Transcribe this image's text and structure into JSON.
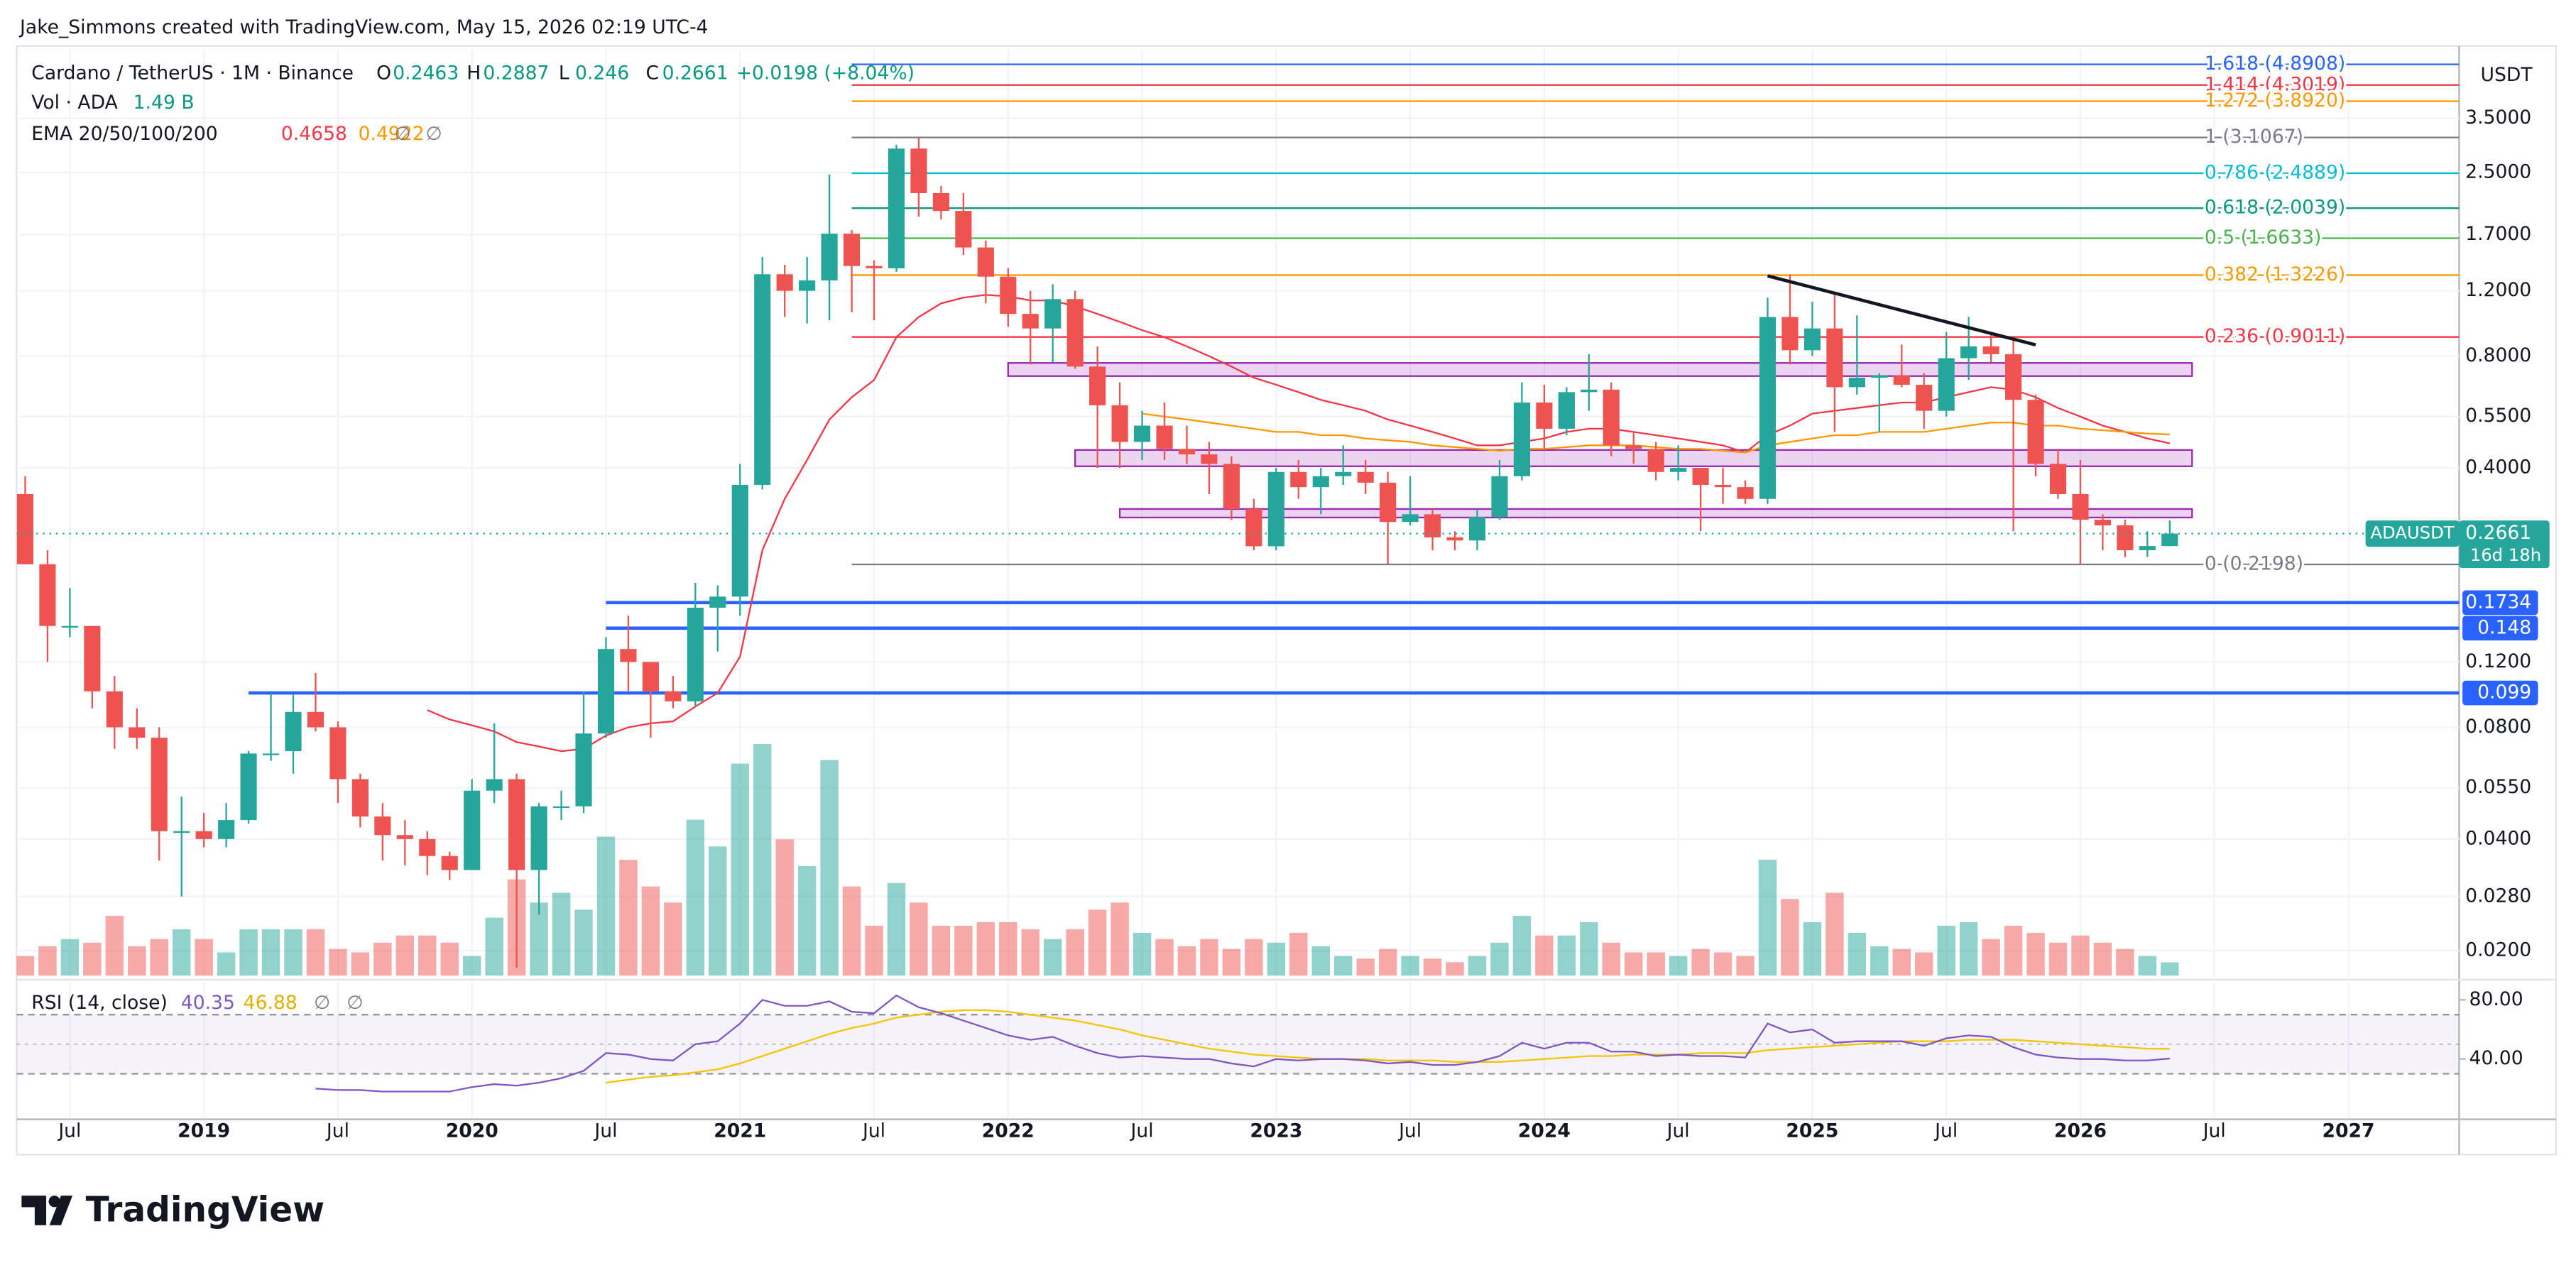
{
  "header": {
    "credit": "Jake_Simmons created with TradingView.com, May 15, 2026 02:19 UTC-4"
  },
  "footer": {
    "brand": "TradingView"
  },
  "chart_data": {
    "type": "candlestick",
    "title": "Cardano / TetherUS · 1M · Binance",
    "legend": {
      "o": "O",
      "h": "H",
      "l": "L",
      "c": "C",
      "change": "+0.0198 (+8.04%)",
      "volume_title": "Vol · ADA",
      "volume_value": "1.49 B",
      "ema_title": "EMA 20/50/100/200",
      "ema_empty": [
        "∅",
        "∅"
      ]
    },
    "currency": "USDT",
    "log_scale": true,
    "grid": true,
    "up_color": "#26a69a",
    "down_color": "#ef5350",
    "x": [
      "2018-05",
      "2018-06",
      "2018-07",
      "2018-08",
      "2018-09",
      "2018-10",
      "2018-11",
      "2018-12",
      "2019-01",
      "2019-02",
      "2019-03",
      "2019-04",
      "2019-05",
      "2019-06",
      "2019-07",
      "2019-08",
      "2019-09",
      "2019-10",
      "2019-11",
      "2019-12",
      "2020-01",
      "2020-02",
      "2020-03",
      "2020-04",
      "2020-05",
      "2020-06",
      "2020-07",
      "2020-08",
      "2020-09",
      "2020-10",
      "2020-11",
      "2020-12",
      "2021-01",
      "2021-02",
      "2021-03",
      "2021-04",
      "2021-05",
      "2021-06",
      "2021-07",
      "2021-08",
      "2021-09",
      "2021-10",
      "2021-11",
      "2021-12",
      "2022-01",
      "2022-02",
      "2022-03",
      "2022-04",
      "2022-05",
      "2022-06",
      "2022-07",
      "2022-08",
      "2022-09",
      "2022-10",
      "2022-11",
      "2022-12",
      "2023-01",
      "2023-02",
      "2023-03",
      "2023-04",
      "2023-05",
      "2023-06",
      "2023-07",
      "2023-08",
      "2023-09",
      "2023-10",
      "2023-11",
      "2023-12",
      "2024-01",
      "2024-02",
      "2024-03",
      "2024-04",
      "2024-05",
      "2024-06",
      "2024-07",
      "2024-08",
      "2024-09",
      "2024-10",
      "2024-11",
      "2024-12",
      "2025-01",
      "2025-02",
      "2025-03",
      "2025-04",
      "2025-05",
      "2025-06",
      "2025-07",
      "2025-08",
      "2025-09",
      "2025-10",
      "2025-11",
      "2025-12",
      "2026-01",
      "2026-02",
      "2026-03",
      "2026-04",
      "2026-05"
    ],
    "open": [
      0.34,
      0.22,
      0.15,
      0.15,
      0.1,
      0.08,
      0.075,
      0.042,
      0.042,
      0.04,
      0.045,
      0.068,
      0.069,
      0.088,
      0.08,
      0.058,
      0.046,
      0.041,
      0.04,
      0.036,
      0.033,
      0.054,
      0.058,
      0.033,
      0.049,
      0.049,
      0.077,
      0.13,
      0.12,
      0.1,
      0.094,
      0.168,
      0.18,
      0.36,
      1.33,
      1.2,
      1.28,
      1.71,
      1.4,
      1.38,
      2.9,
      2.2,
      1.97,
      1.57,
      1.31,
      1.04,
      0.95,
      1.14,
      0.75,
      0.59,
      0.47,
      0.52,
      0.45,
      0.435,
      0.41,
      0.31,
      0.246,
      0.39,
      0.355,
      0.38,
      0.39,
      0.365,
      0.286,
      0.3,
      0.26,
      0.255,
      0.295,
      0.38,
      0.6,
      0.51,
      0.64,
      0.65,
      0.46,
      0.45,
      0.39,
      0.4,
      0.36,
      0.355,
      0.33,
      1.02,
      0.83,
      0.95,
      0.66,
      0.7,
      0.71,
      0.67,
      0.57,
      0.79,
      0.85,
      0.81,
      0.61,
      0.41,
      0.34,
      0.29,
      0.28,
      0.24,
      0.2463
    ],
    "high": [
      0.38,
      0.24,
      0.19,
      0.15,
      0.11,
      0.09,
      0.08,
      0.052,
      0.047,
      0.05,
      0.069,
      0.099,
      0.098,
      0.112,
      0.083,
      0.06,
      0.05,
      0.045,
      0.042,
      0.037,
      0.058,
      0.082,
      0.06,
      0.05,
      0.054,
      0.1,
      0.14,
      0.16,
      0.12,
      0.11,
      0.196,
      0.193,
      0.41,
      1.48,
      1.41,
      1.48,
      2.47,
      1.75,
      1.45,
      2.97,
      3.1,
      2.3,
      2.2,
      1.64,
      1.38,
      1.2,
      1.25,
      1.2,
      0.85,
      0.68,
      0.57,
      0.6,
      0.52,
      0.47,
      0.43,
      0.33,
      0.4,
      0.42,
      0.4,
      0.46,
      0.42,
      0.39,
      0.38,
      0.31,
      0.27,
      0.31,
      0.42,
      0.68,
      0.67,
      0.66,
      0.81,
      0.68,
      0.5,
      0.47,
      0.46,
      0.4,
      0.4,
      0.37,
      1.15,
      1.33,
      1.12,
      1.17,
      1.03,
      0.72,
      0.86,
      0.72,
      0.93,
      1.02,
      0.93,
      0.88,
      0.63,
      0.45,
      0.42,
      0.3,
      0.29,
      0.27,
      0.2887
    ],
    "low": [
      0.22,
      0.12,
      0.14,
      0.09,
      0.07,
      0.07,
      0.035,
      0.028,
      0.038,
      0.038,
      0.044,
      0.065,
      0.06,
      0.078,
      0.05,
      0.043,
      0.035,
      0.034,
      0.032,
      0.031,
      0.033,
      0.05,
      0.018,
      0.025,
      0.045,
      0.047,
      0.075,
      0.1,
      0.075,
      0.09,
      0.091,
      0.128,
      0.16,
      0.35,
      1.02,
      0.98,
      1.0,
      1.05,
      1.0,
      1.35,
      1.9,
      1.87,
      1.5,
      1.11,
      0.96,
      0.76,
      0.77,
      0.74,
      0.4,
      0.4,
      0.42,
      0.42,
      0.41,
      0.34,
      0.29,
      0.24,
      0.24,
      0.33,
      0.3,
      0.36,
      0.34,
      0.22,
      0.28,
      0.24,
      0.24,
      0.24,
      0.29,
      0.37,
      0.45,
      0.49,
      0.57,
      0.43,
      0.41,
      0.37,
      0.37,
      0.27,
      0.32,
      0.32,
      0.32,
      0.76,
      0.8,
      0.5,
      0.63,
      0.5,
      0.66,
      0.51,
      0.55,
      0.69,
      0.77,
      0.27,
      0.38,
      0.33,
      0.22,
      0.24,
      0.23,
      0.23,
      0.246
    ],
    "close": [
      0.22,
      0.15,
      0.15,
      0.1,
      0.08,
      0.075,
      0.042,
      0.042,
      0.04,
      0.045,
      0.068,
      0.068,
      0.088,
      0.08,
      0.058,
      0.046,
      0.041,
      0.04,
      0.036,
      0.033,
      0.054,
      0.058,
      0.033,
      0.049,
      0.049,
      0.077,
      0.13,
      0.12,
      0.1,
      0.094,
      0.168,
      0.18,
      0.36,
      1.33,
      1.2,
      1.28,
      1.71,
      1.4,
      1.38,
      2.9,
      2.2,
      1.97,
      1.57,
      1.31,
      1.04,
      0.95,
      1.14,
      0.75,
      0.59,
      0.47,
      0.52,
      0.45,
      0.435,
      0.41,
      0.31,
      0.246,
      0.39,
      0.355,
      0.38,
      0.39,
      0.365,
      0.286,
      0.3,
      0.26,
      0.255,
      0.295,
      0.38,
      0.6,
      0.51,
      0.64,
      0.65,
      0.46,
      0.45,
      0.39,
      0.4,
      0.36,
      0.355,
      0.33,
      1.02,
      0.83,
      0.95,
      0.66,
      0.7,
      0.71,
      0.67,
      0.57,
      0.79,
      0.85,
      0.81,
      0.61,
      0.41,
      0.34,
      0.29,
      0.28,
      0.24,
      0.2463,
      0.2661
    ],
    "volume": [
      2.2,
      3.3,
      4.1,
      3.7,
      6.7,
      3.3,
      4.1,
      5.2,
      4.1,
      2.6,
      5.2,
      5.2,
      5.2,
      5.2,
      3.0,
      2.6,
      3.7,
      4.5,
      4.5,
      3.7,
      2.2,
      6.5,
      10.8,
      8.2,
      9.3,
      7.4,
      15.6,
      13.0,
      10.0,
      8.2,
      17.5,
      14.5,
      23.8,
      26.0,
      15.3,
      12.3,
      24.2,
      10.0,
      5.6,
      10.4,
      8.2,
      5.6,
      5.6,
      6.0,
      6.0,
      5.2,
      4.1,
      5.2,
      7.4,
      8.2,
      4.8,
      4.1,
      3.3,
      4.1,
      3.0,
      4.1,
      3.7,
      4.8,
      3.3,
      2.2,
      1.9,
      3.0,
      2.2,
      1.9,
      1.5,
      2.2,
      3.7,
      6.7,
      4.5,
      4.5,
      6.0,
      3.7,
      2.6,
      2.6,
      2.2,
      3.0,
      2.6,
      2.2,
      13.0,
      8.6,
      6.0,
      9.3,
      4.8,
      3.3,
      3.0,
      2.6,
      5.6,
      6.0,
      4.1,
      5.6,
      4.8,
      3.7,
      4.5,
      3.7,
      3.0,
      2.2,
      1.49
    ],
    "ema": [
      {
        "color": "#f23645",
        "values": [
          null,
          null,
          null,
          null,
          null,
          null,
          null,
          null,
          null,
          null,
          null,
          null,
          null,
          null,
          null,
          null,
          null,
          null,
          0.089,
          0.084,
          0.081,
          0.078,
          0.073,
          0.071,
          0.069,
          0.07,
          0.076,
          0.08,
          0.082,
          0.083,
          0.091,
          0.099,
          0.124,
          0.24,
          0.33,
          0.42,
          0.54,
          0.62,
          0.69,
          0.9,
          1.02,
          1.11,
          1.15,
          1.17,
          1.16,
          1.13,
          1.13,
          1.09,
          1.04,
          0.99,
          0.94,
          0.9,
          0.85,
          0.8,
          0.75,
          0.7,
          0.67,
          0.64,
          0.61,
          0.59,
          0.57,
          0.54,
          0.52,
          0.5,
          0.48,
          0.46,
          0.46,
          0.47,
          0.48,
          0.5,
          0.51,
          0.51,
          0.5,
          0.49,
          0.48,
          0.47,
          0.46,
          0.44,
          0.49,
          0.52,
          0.56,
          0.57,
          0.58,
          0.59,
          0.6,
          0.6,
          0.62,
          0.64,
          0.66,
          0.65,
          0.62,
          0.58,
          0.55,
          0.52,
          0.5,
          0.48,
          0.4658
        ]
      },
      {
        "color": "#ff9800",
        "values": [
          null,
          null,
          null,
          null,
          null,
          null,
          null,
          null,
          null,
          null,
          null,
          null,
          null,
          null,
          null,
          null,
          null,
          null,
          null,
          null,
          null,
          null,
          null,
          null,
          null,
          null,
          null,
          null,
          null,
          null,
          null,
          null,
          null,
          null,
          null,
          null,
          null,
          null,
          null,
          null,
          null,
          null,
          null,
          null,
          null,
          null,
          null,
          null,
          null,
          null,
          0.56,
          0.55,
          0.54,
          0.53,
          0.52,
          0.51,
          0.5,
          0.5,
          0.49,
          0.49,
          0.48,
          0.475,
          0.47,
          0.46,
          0.455,
          0.45,
          0.445,
          0.45,
          0.45,
          0.455,
          0.46,
          0.46,
          0.46,
          0.455,
          0.45,
          0.45,
          0.445,
          0.44,
          0.46,
          0.47,
          0.48,
          0.49,
          0.49,
          0.5,
          0.5,
          0.5,
          0.51,
          0.52,
          0.53,
          0.53,
          0.52,
          0.52,
          0.51,
          0.505,
          0.5,
          0.495,
          0.4922
        ]
      }
    ],
    "ylim": [
      0.0168,
      5.37
    ],
    "yticks": [
      {
        "value": 3.5,
        "label": "3.5000"
      },
      {
        "value": 2.5,
        "label": "2.5000"
      },
      {
        "value": 1.7,
        "label": "1.7000"
      },
      {
        "value": 1.2,
        "label": "1.2000"
      },
      {
        "value": 0.8,
        "label": "0.8000"
      },
      {
        "value": 0.55,
        "label": "0.5500"
      },
      {
        "value": 0.4,
        "label": "0.4000"
      },
      {
        "value": 0.12,
        "label": "0.1200"
      },
      {
        "value": 0.08,
        "label": "0.0800"
      },
      {
        "value": 0.055,
        "label": "0.0550"
      },
      {
        "value": 0.04,
        "label": "0.0400"
      },
      {
        "value": 0.028,
        "label": "0.0280"
      },
      {
        "value": 0.02,
        "label": "0.0200"
      }
    ],
    "xlim": [
      "2018-04",
      "2027-06"
    ],
    "xticks": [
      {
        "value": "2018-07",
        "label": "Jul"
      },
      {
        "value": "2019-01",
        "label": "2019"
      },
      {
        "value": "2019-07",
        "label": "Jul"
      },
      {
        "value": "2020-01",
        "label": "2020"
      },
      {
        "value": "2020-07",
        "label": "Jul"
      },
      {
        "value": "2021-01",
        "label": "2021"
      },
      {
        "value": "2021-07",
        "label": "Jul"
      },
      {
        "value": "2022-01",
        "label": "2022"
      },
      {
        "value": "2022-07",
        "label": "Jul"
      },
      {
        "value": "2023-01",
        "label": "2023"
      },
      {
        "value": "2023-07",
        "label": "Jul"
      },
      {
        "value": "2024-01",
        "label": "2024"
      },
      {
        "value": "2024-07",
        "label": "Jul"
      },
      {
        "value": "2025-01",
        "label": "2025"
      },
      {
        "value": "2025-07",
        "label": "Jul"
      },
      {
        "value": "2026-01",
        "label": "2026"
      },
      {
        "value": "2026-07",
        "label": "Jul"
      },
      {
        "value": "2027-01",
        "label": "2027"
      }
    ],
    "fib_start": "2021-06",
    "fib": [
      {
        "label": "1.618 (4.8908)",
        "price": 4.8908,
        "color": "#2962ff"
      },
      {
        "label": "1.414 (4.3019)",
        "price": 4.3019,
        "color": "#f23645"
      },
      {
        "label": "1.272 (3.8920)",
        "price": 3.892,
        "color": "#ff9800"
      },
      {
        "label": "1 (3.1067)",
        "price": 3.1067,
        "color": "#787b86"
      },
      {
        "label": "0.786 (2.4889)",
        "price": 2.4889,
        "color": "#00bcd4"
      },
      {
        "label": "0.618 (2.0039)",
        "price": 2.0039,
        "color": "#089981"
      },
      {
        "label": "0.5 (1.6633)",
        "price": 1.6633,
        "color": "#4caf50"
      },
      {
        "label": "0.382 (1.3226)",
        "price": 1.3226,
        "color": "#ff9800"
      },
      {
        "label": "0.236 (0.9011)",
        "price": 0.9011,
        "color": "#f23645"
      },
      {
        "label": "0 (0.2198)",
        "price": 0.2198,
        "color": "#787b86"
      }
    ],
    "supports": {
      "color": "#2962ff",
      "levels": [
        {
          "price": 0.1734,
          "start": "2020-07"
        },
        {
          "price": 0.148,
          "start": "2020-07"
        },
        {
          "price": 0.099,
          "start": "2019-03"
        }
      ]
    },
    "zone_color": "#9c27b0",
    "zones": [
      {
        "low": 0.707,
        "high": 0.767,
        "start": "2022-01",
        "end": "2026-06"
      },
      {
        "low": 0.404,
        "high": 0.447,
        "start": "2022-04",
        "end": "2026-06"
      },
      {
        "low": 0.294,
        "high": 0.31,
        "start": "2022-06",
        "end": "2026-06"
      }
    ],
    "trendline": {
      "x": [
        "2024-11",
        "2025-11"
      ],
      "y": [
        1.316,
        0.858
      ],
      "color": "#131722"
    },
    "last_price": {
      "symbol": "ADAUSDT",
      "countdown": "16d 18h"
    },
    "rsi": {
      "title": "RSI (14, close)",
      "empty": [
        "∅",
        "∅"
      ],
      "color": "#7e57c2",
      "ma_color": "#f5c400",
      "ylim": [
        0,
        92
      ],
      "yticks": [
        {
          "value": 80,
          "label": "80.00"
        },
        {
          "value": 40,
          "label": "40.00"
        }
      ],
      "bands": [
        70,
        50,
        30
      ],
      "values": [
        null,
        null,
        null,
        null,
        null,
        null,
        null,
        null,
        null,
        null,
        null,
        null,
        null,
        20,
        19,
        19,
        18,
        18,
        18,
        18,
        21,
        23,
        22,
        24,
        27,
        32,
        44,
        43,
        40,
        39,
        50,
        52,
        64,
        80,
        76,
        76,
        79,
        72,
        71,
        83,
        75,
        71,
        66,
        61,
        56,
        53,
        55,
        49,
        44,
        41,
        42,
        41,
        40,
        40,
        37,
        35,
        40,
        39,
        40,
        40,
        39,
        37,
        38,
        36,
        36,
        38,
        42,
        51,
        47,
        51,
        51,
        45,
        45,
        42,
        43,
        42,
        42,
        41,
        64,
        58,
        60,
        51,
        52,
        52,
        52,
        49,
        54,
        56,
        55,
        48,
        43,
        41,
        40,
        40,
        39,
        39,
        40.35
      ],
      "ma": [
        null,
        null,
        null,
        null,
        null,
        null,
        null,
        null,
        null,
        null,
        null,
        null,
        null,
        null,
        null,
        null,
        null,
        null,
        null,
        null,
        null,
        null,
        null,
        null,
        null,
        null,
        24,
        26,
        28,
        29,
        31,
        33,
        37,
        42,
        47,
        52,
        57,
        61,
        64,
        68,
        70,
        72,
        73,
        73,
        72,
        70,
        68,
        66,
        63,
        60,
        56,
        53,
        50,
        47,
        45,
        43,
        42,
        41,
        40,
        40,
        40,
        39,
        39,
        39,
        38,
        38,
        38,
        39,
        40,
        41,
        42,
        42,
        43,
        43,
        43,
        44,
        44,
        44,
        46,
        47,
        48,
        49,
        50,
        51,
        52,
        52,
        52,
        53,
        53,
        53,
        52,
        51,
        50,
        49,
        48,
        47,
        46.88
      ]
    }
  }
}
